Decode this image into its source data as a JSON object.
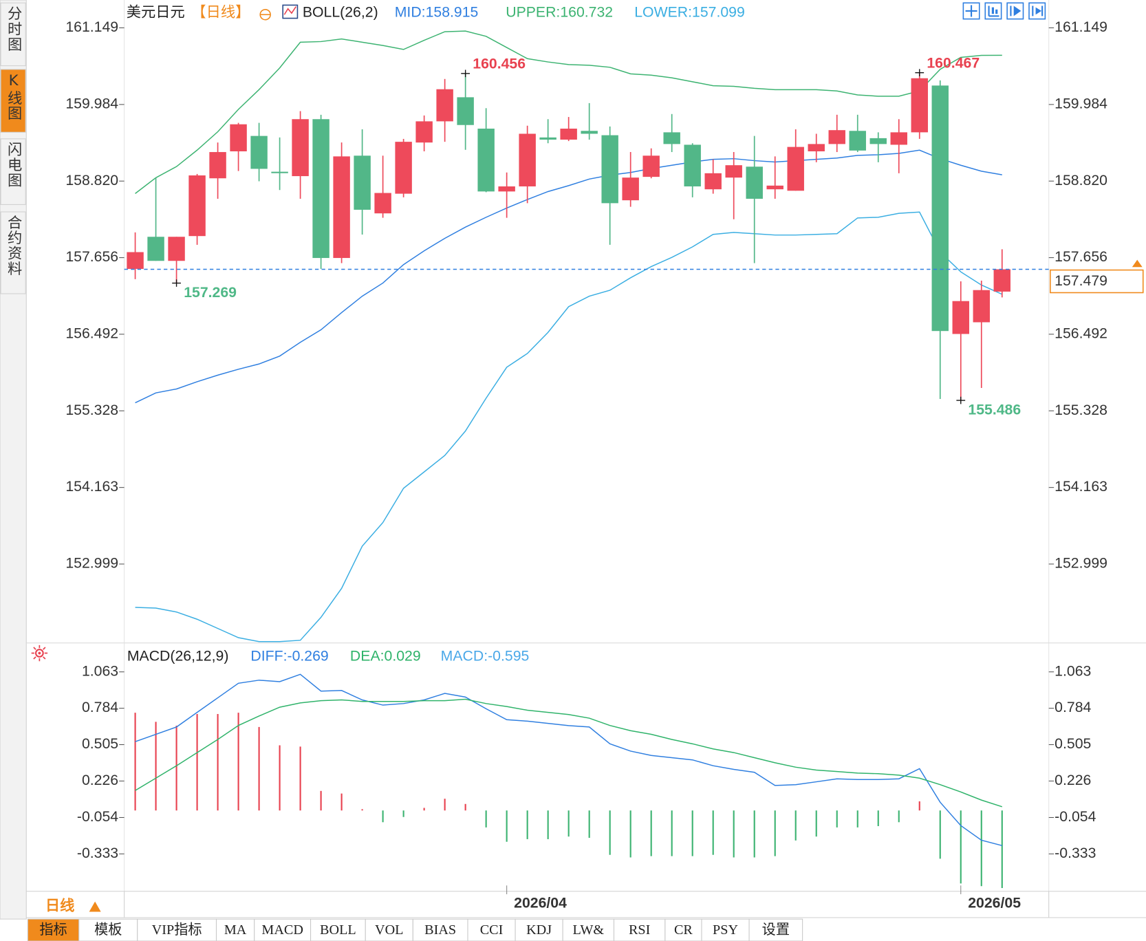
{
  "sidebar": {
    "tabs": [
      "分时图",
      "K线图",
      "闪电图",
      "合约资料"
    ],
    "active": 1
  },
  "toolbar": {
    "tabs": [
      "指标",
      "模板",
      "VIP指标",
      "MA",
      "MACD",
      "BOLL",
      "VOL",
      "BIAS",
      "CCI",
      "KDJ",
      "LW&",
      "RSI",
      "CR",
      "PSY",
      "设置"
    ]
  },
  "period_label": "日线",
  "chart_data": [
    {
      "type": "candlestick",
      "title": "美元日元",
      "subtitle": "【日线】",
      "indicator": "BOLL(26,2)",
      "up_color": "#ee4a5b",
      "down_color": "#52b788",
      "open": [
        157.485,
        157.973,
        157.607,
        157.984,
        158.862,
        159.272,
        159.506,
        158.962,
        158.895,
        159.761,
        157.651,
        159.206,
        158.329,
        158.628,
        159.406,
        159.728,
        160.094,
        159.617,
        158.662,
        158.739,
        159.483,
        159.45,
        159.583,
        159.517,
        158.528,
        158.884,
        159.561,
        159.372,
        158.695,
        158.873,
        159.039,
        158.695,
        158.673,
        159.272,
        159.383,
        159.583,
        159.472,
        159.372,
        159.561,
        160.272,
        156.496,
        156.674,
        157.14
      ],
      "high": [
        158.04,
        158.873,
        157.973,
        158.928,
        159.406,
        159.705,
        159.705,
        159.483,
        159.883,
        159.828,
        159.406,
        159.606,
        159.206,
        159.461,
        159.817,
        160.372,
        160.456,
        159.928,
        158.95,
        159.661,
        159.761,
        159.794,
        160.005,
        159.65,
        159.261,
        159.317,
        159.839,
        159.395,
        159.15,
        159.261,
        159.506,
        159.195,
        159.606,
        159.539,
        159.828,
        159.828,
        159.561,
        159.761,
        160.467,
        160.35,
        157.296,
        157.307,
        157.784
      ],
      "low": [
        157.329,
        157.607,
        157.269,
        157.851,
        158.551,
        158.973,
        158.817,
        158.684,
        158.551,
        157.485,
        157.573,
        158.007,
        158.262,
        158.573,
        159.272,
        159.417,
        159.295,
        158.651,
        158.262,
        158.484,
        159.395,
        159.428,
        159.45,
        157.851,
        158.429,
        158.862,
        159.261,
        158.573,
        158.628,
        158.24,
        157.573,
        158.551,
        158.673,
        159.106,
        159.261,
        159.261,
        159.106,
        158.939,
        159.461,
        155.508,
        155.486,
        155.675,
        157.052
      ],
      "close": [
        157.74,
        157.607,
        157.973,
        158.906,
        159.261,
        159.683,
        159.006,
        158.94,
        159.761,
        157.651,
        159.195,
        158.384,
        158.639,
        159.417,
        159.728,
        160.216,
        159.672,
        158.662,
        158.739,
        159.539,
        159.45,
        159.617,
        159.539,
        158.484,
        158.873,
        159.206,
        159.383,
        158.739,
        158.939,
        159.061,
        158.551,
        158.751,
        159.339,
        159.383,
        159.594,
        159.284,
        159.383,
        159.561,
        160.383,
        156.541,
        156.996,
        157.163,
        157.479
      ],
      "series": [
        {
          "name": "MID:158.915",
          "color": "#2f7fe0",
          "values": [
            155.45,
            155.6,
            155.66,
            155.77,
            155.87,
            155.96,
            156.04,
            156.16,
            156.37,
            156.56,
            156.82,
            157.07,
            157.27,
            157.55,
            157.76,
            157.95,
            158.12,
            158.27,
            158.41,
            158.54,
            158.66,
            158.75,
            158.85,
            158.91,
            158.95,
            159.01,
            159.06,
            159.11,
            159.15,
            159.16,
            159.13,
            159.11,
            159.13,
            159.15,
            159.17,
            159.21,
            159.22,
            159.24,
            159.29,
            159.16,
            159.06,
            158.97,
            158.915
          ]
        },
        {
          "name": "UPPER:160.732",
          "color": "#3cb371",
          "values": [
            158.63,
            158.87,
            159.04,
            159.29,
            159.57,
            159.91,
            160.21,
            160.54,
            160.93,
            160.94,
            160.98,
            160.93,
            160.88,
            160.82,
            160.96,
            161.09,
            161.1,
            161.02,
            160.85,
            160.68,
            160.63,
            160.59,
            160.58,
            160.55,
            160.45,
            160.43,
            160.39,
            160.33,
            160.27,
            160.26,
            160.23,
            160.21,
            160.21,
            160.21,
            160.19,
            160.13,
            160.11,
            160.11,
            160.19,
            160.52,
            160.7,
            160.73,
            160.732
          ]
        },
        {
          "name": "LOWER:157.099",
          "color": "#3aaee2",
          "values": [
            152.34,
            152.33,
            152.27,
            152.16,
            152.02,
            151.88,
            151.82,
            151.82,
            151.84,
            152.19,
            152.63,
            153.27,
            153.63,
            154.15,
            154.4,
            154.65,
            155.02,
            155.52,
            155.99,
            156.2,
            156.52,
            156.91,
            157.07,
            157.16,
            157.35,
            157.52,
            157.66,
            157.82,
            158.01,
            158.04,
            158.02,
            158.0,
            158.0,
            158.01,
            158.02,
            158.26,
            158.27,
            158.33,
            158.35,
            157.74,
            157.44,
            157.24,
            157.099
          ]
        }
      ],
      "ylim": [
        151.8,
        161.55
      ],
      "yticks": [
        161.149,
        159.984,
        {
          "value": 158.82,
          "label": "158.820"
        },
        157.656,
        156.492,
        155.328,
        154.163,
        152.999
      ],
      "high_marks": [
        160.456,
        160.467
      ],
      "low_marks": [
        157.269,
        155.486
      ],
      "last_price": 157.479,
      "last_price_color": "#f08a1c"
    },
    {
      "type": "macd",
      "title": "MACD(26,12,9)",
      "categories": [
        null,
        null,
        null,
        null,
        null,
        null,
        null,
        null,
        null,
        null,
        null,
        null,
        null,
        null,
        null,
        null,
        null,
        null,
        "2026/04",
        null,
        null,
        null,
        null,
        null,
        null,
        null,
        null,
        null,
        null,
        null,
        null,
        null,
        null,
        null,
        null,
        null,
        null,
        null,
        null,
        null,
        "2026/05",
        null,
        null
      ],
      "series": [
        {
          "name": "DIFF:-0.269",
          "color": "#2f7fe0",
          "values": [
            0.528,
            0.584,
            0.64,
            0.752,
            0.864,
            0.976,
            0.999,
            0.988,
            1.044,
            0.915,
            0.92,
            0.848,
            0.808,
            0.82,
            0.848,
            0.898,
            0.87,
            0.78,
            0.696,
            0.685,
            0.668,
            0.651,
            0.64,
            0.511,
            0.455,
            0.422,
            0.405,
            0.388,
            0.343,
            0.315,
            0.293,
            0.192,
            0.198,
            0.22,
            0.243,
            0.237,
            0.237,
            0.243,
            0.321,
            0.063,
            -0.116,
            -0.228,
            -0.269
          ]
        },
        {
          "name": "DEA:0.029",
          "color": "#2fb36a",
          "values": [
            0.153,
            0.248,
            0.343,
            0.444,
            0.545,
            0.652,
            0.724,
            0.792,
            0.825,
            0.842,
            0.848,
            0.836,
            0.836,
            0.836,
            0.842,
            0.842,
            0.853,
            0.82,
            0.797,
            0.769,
            0.752,
            0.736,
            0.708,
            0.652,
            0.612,
            0.584,
            0.545,
            0.511,
            0.472,
            0.444,
            0.405,
            0.366,
            0.332,
            0.31,
            0.299,
            0.287,
            0.282,
            0.271,
            0.248,
            0.198,
            0.142,
            0.08,
            0.029
          ]
        }
      ],
      "histogram": {
        "name": "MACD:-0.595",
        "color": "#4aa8e8",
        "up_color": "#e8414f",
        "down_color": "#3cb371",
        "values": [
          0.75,
          0.68,
          0.65,
          0.74,
          0.74,
          0.75,
          0.64,
          0.5,
          0.49,
          0.15,
          0.13,
          0.01,
          -0.09,
          -0.05,
          0.02,
          0.09,
          0.05,
          -0.13,
          -0.24,
          -0.22,
          -0.22,
          -0.2,
          -0.21,
          -0.34,
          -0.36,
          -0.35,
          -0.35,
          -0.35,
          -0.34,
          -0.36,
          -0.36,
          -0.35,
          -0.23,
          -0.2,
          -0.13,
          -0.13,
          -0.12,
          -0.09,
          0.07,
          -0.37,
          -0.56,
          -0.58,
          -0.595
        ]
      },
      "ylim": [
        -0.62,
        1.257
      ],
      "yticks": [
        1.063,
        0.784,
        0.505,
        0.226,
        -0.054,
        -0.333
      ]
    }
  ]
}
